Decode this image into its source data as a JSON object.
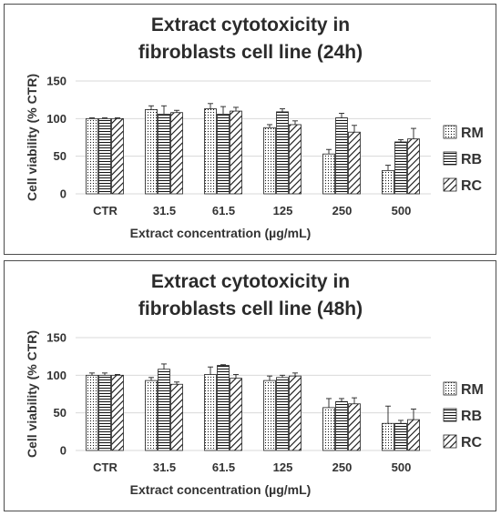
{
  "chart_data": [
    {
      "type": "bar",
      "title_lines": [
        "Extract cytotoxicity in",
        "fibroblasts cell line (24h)"
      ],
      "xlabel": "Extract concentration (µg/mL)",
      "ylabel": "Cell viability (% CTR)",
      "ylim": [
        0,
        150
      ],
      "yticks": [
        "0",
        "50",
        "100",
        "150"
      ],
      "categories": [
        "CTR",
        "31.5",
        "61.5",
        "125",
        "250",
        "500"
      ],
      "legend_position": "right",
      "series": [
        {
          "name": "RM",
          "pattern": "dots",
          "values": [
            100,
            112,
            113,
            88,
            53,
            31
          ],
          "errors": [
            1,
            5,
            7,
            4,
            6,
            7
          ]
        },
        {
          "name": "RB",
          "pattern": "horizontal",
          "values": [
            100,
            106,
            106,
            109,
            101,
            69
          ],
          "errors": [
            1,
            11,
            10,
            4,
            6,
            3
          ]
        },
        {
          "name": "RC",
          "pattern": "diagonal",
          "values": [
            100,
            108,
            110,
            92,
            82,
            73
          ],
          "errors": [
            1,
            3,
            5,
            5,
            9,
            14
          ]
        }
      ]
    },
    {
      "type": "bar",
      "title_lines": [
        "Extract cytotoxicity in",
        "fibroblasts cell line (48h)"
      ],
      "xlabel": "Extract concentration (µg/mL)",
      "ylabel": "Cell viability (% CTR)",
      "ylim": [
        0,
        150
      ],
      "yticks": [
        "0",
        "50",
        "100",
        "150"
      ],
      "categories": [
        "CTR",
        "31.5",
        "61.5",
        "125",
        "250",
        "500"
      ],
      "legend_position": "right",
      "series": [
        {
          "name": "RM",
          "pattern": "dots",
          "values": [
            100,
            93,
            101,
            93,
            57,
            36
          ],
          "errors": [
            3,
            4,
            10,
            6,
            12,
            23
          ]
        },
        {
          "name": "RB",
          "pattern": "horizontal",
          "values": [
            100,
            108,
            113,
            97,
            65,
            36
          ],
          "errors": [
            3,
            7,
            1,
            3,
            4,
            4
          ]
        },
        {
          "name": "RC",
          "pattern": "diagonal",
          "values": [
            100,
            88,
            96,
            99,
            62,
            41
          ],
          "errors": [
            1,
            3,
            5,
            4,
            8,
            14
          ]
        }
      ]
    }
  ]
}
